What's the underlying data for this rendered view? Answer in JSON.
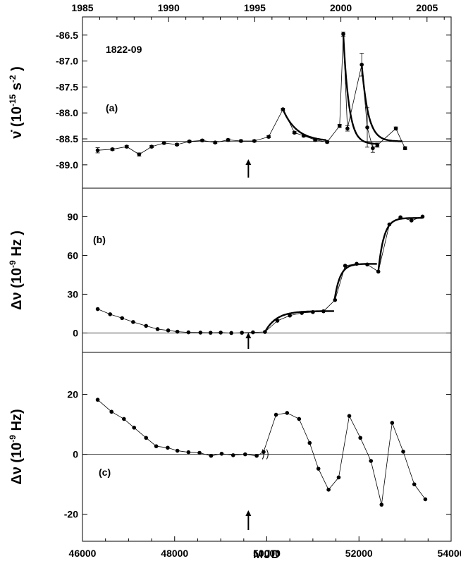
{
  "chart_data": {
    "type": "scatter",
    "source_label": "1822-09",
    "x_axis": {
      "label": "MJD",
      "range": [
        46000,
        54000
      ],
      "ticks": [
        "46000",
        "48000",
        "50000",
        "52000",
        "54000"
      ],
      "top_axis_label": "",
      "top_range_year": [
        1985,
        2006.4
      ],
      "top_ticks": [
        "1985",
        "1990",
        "1995",
        "2000",
        "2005"
      ]
    },
    "event_marker_mjd": 49600,
    "panels": [
      {
        "id": "a",
        "label": "(a)",
        "ylabel_main": "ν̇ (10",
        "ylabel_exp1": "-15",
        "ylabel_unit": "s",
        "ylabel_exp2": "-2",
        "ylabel_close": ")",
        "y_range": [
          -89.45,
          -86.15
        ],
        "y_ticks": [
          "-86.5",
          "-87.0",
          "-87.5",
          "-88.0",
          "-88.5",
          "-89.0"
        ],
        "baseline": -88.55,
        "points": [
          {
            "x": 46330,
            "y": -88.72,
            "e": 0.05
          },
          {
            "x": 46650,
            "y": -88.7,
            "e": 0.02
          },
          {
            "x": 46960,
            "y": -88.65,
            "e": 0.02
          },
          {
            "x": 47230,
            "y": -88.8,
            "e": 0.03
          },
          {
            "x": 47500,
            "y": -88.65,
            "e": 0.02
          },
          {
            "x": 47770,
            "y": -88.58,
            "e": 0.02
          },
          {
            "x": 48050,
            "y": -88.61,
            "e": 0.02
          },
          {
            "x": 48320,
            "y": -88.55,
            "e": 0.02
          },
          {
            "x": 48600,
            "y": -88.53,
            "e": 0.02
          },
          {
            "x": 48880,
            "y": -88.57,
            "e": 0.02
          },
          {
            "x": 49160,
            "y": -88.52,
            "e": 0.02
          },
          {
            "x": 49440,
            "y": -88.54,
            "e": 0.02
          },
          {
            "x": 49730,
            "y": -88.54,
            "e": 0.02
          },
          {
            "x": 50040,
            "y": -88.46,
            "e": 0.02
          },
          {
            "x": 50350,
            "y": -87.93,
            "e": 0.02
          },
          {
            "x": 50600,
            "y": -88.38,
            "e": 0.02
          },
          {
            "x": 50800,
            "y": -88.44,
            "e": 0.02
          },
          {
            "x": 51050,
            "y": -88.52,
            "e": 0.02
          },
          {
            "x": 51310,
            "y": -88.56,
            "e": 0.02
          },
          {
            "x": 51580,
            "y": -88.25,
            "e": 0.03
          },
          {
            "x": 51660,
            "y": -86.48,
            "e": 0.04
          },
          {
            "x": 51750,
            "y": -88.3,
            "e": 0.05
          },
          {
            "x": 52300,
            "y": -88.68,
            "e": 0.08
          },
          {
            "x": 52060,
            "y": -87.07,
            "e": 0.22
          },
          {
            "x": 52180,
            "y": -88.28,
            "e": 0.38
          },
          {
            "x": 52400,
            "y": -88.62,
            "e": 0.04
          },
          {
            "x": 52800,
            "y": -88.3,
            "e": 0.03
          },
          {
            "x": 53000,
            "y": -88.68,
            "e": 0.03
          }
        ]
      },
      {
        "id": "b",
        "label": "(b)",
        "ylabel_main": "Δν (10",
        "ylabel_exp1": "-9",
        "ylabel_unit": "Hz )",
        "y_range": [
          -15,
          112
        ],
        "y_ticks": [
          "0",
          "30",
          "60",
          "90"
        ],
        "baseline": 0,
        "points": [
          {
            "x": 46330,
            "y": 18.5
          },
          {
            "x": 46600,
            "y": 14.5
          },
          {
            "x": 46860,
            "y": 11.5
          },
          {
            "x": 47100,
            "y": 8.5
          },
          {
            "x": 47380,
            "y": 5.5
          },
          {
            "x": 47630,
            "y": 3.0
          },
          {
            "x": 47860,
            "y": 2.0
          },
          {
            "x": 48060,
            "y": 1.0
          },
          {
            "x": 48300,
            "y": 0.5
          },
          {
            "x": 48560,
            "y": 0.3
          },
          {
            "x": 48780,
            "y": 0.2
          },
          {
            "x": 49000,
            "y": 0.3
          },
          {
            "x": 49230,
            "y": 0.0
          },
          {
            "x": 49460,
            "y": 0.2
          },
          {
            "x": 49700,
            "y": 0.5
          },
          {
            "x": 49960,
            "y": 0.8
          },
          {
            "x": 50230,
            "y": 9.5
          },
          {
            "x": 50500,
            "y": 13.5
          },
          {
            "x": 50760,
            "y": 15.5
          },
          {
            "x": 51000,
            "y": 16.2
          },
          {
            "x": 51230,
            "y": 16.8
          },
          {
            "x": 51480,
            "y": 25.5
          },
          {
            "x": 51700,
            "y": 52.0
          },
          {
            "x": 51950,
            "y": 53.5
          },
          {
            "x": 52180,
            "y": 53.0
          },
          {
            "x": 52420,
            "y": 47.5
          },
          {
            "x": 52660,
            "y": 84.0
          },
          {
            "x": 52900,
            "y": 89.5
          },
          {
            "x": 53140,
            "y": 87.0
          },
          {
            "x": 53380,
            "y": 90.0
          }
        ]
      },
      {
        "id": "c",
        "label": "(c)",
        "ylabel_main": "Δν (10",
        "ylabel_exp1": "-9",
        "ylabel_unit": "Hz)",
        "y_range": [
          -29,
          34
        ],
        "y_ticks": [
          "20",
          "0",
          "-20"
        ],
        "baseline": 0,
        "points": [
          {
            "x": 46330,
            "y": 18.2
          },
          {
            "x": 46630,
            "y": 14.2
          },
          {
            "x": 46900,
            "y": 11.8
          },
          {
            "x": 47120,
            "y": 8.9
          },
          {
            "x": 47380,
            "y": 5.5
          },
          {
            "x": 47600,
            "y": 2.7
          },
          {
            "x": 47850,
            "y": 2.2
          },
          {
            "x": 48060,
            "y": 1.2
          },
          {
            "x": 48300,
            "y": 0.7
          },
          {
            "x": 48540,
            "y": 0.5
          },
          {
            "x": 48790,
            "y": -0.5
          },
          {
            "x": 49020,
            "y": 0.2
          },
          {
            "x": 49270,
            "y": -0.3
          },
          {
            "x": 49530,
            "y": 0.0
          },
          {
            "x": 49780,
            "y": -0.5
          },
          {
            "x": 49930,
            "y": 0.8
          },
          {
            "x": 50200,
            "y": 13.2
          },
          {
            "x": 50440,
            "y": 13.8
          },
          {
            "x": 50700,
            "y": 11.8
          },
          {
            "x": 50930,
            "y": 3.8
          },
          {
            "x": 51120,
            "y": -4.8
          },
          {
            "x": 51340,
            "y": -11.8
          },
          {
            "x": 51560,
            "y": -7.7
          },
          {
            "x": 51790,
            "y": 12.8
          },
          {
            "x": 52030,
            "y": 5.5
          },
          {
            "x": 52260,
            "y": -2.2
          },
          {
            "x": 52490,
            "y": -16.8
          },
          {
            "x": 52720,
            "y": 10.5
          },
          {
            "x": 52960,
            "y": 0.9
          },
          {
            "x": 53200,
            "y": -10.0
          },
          {
            "x": 53440,
            "y": -15.0
          }
        ]
      }
    ]
  }
}
